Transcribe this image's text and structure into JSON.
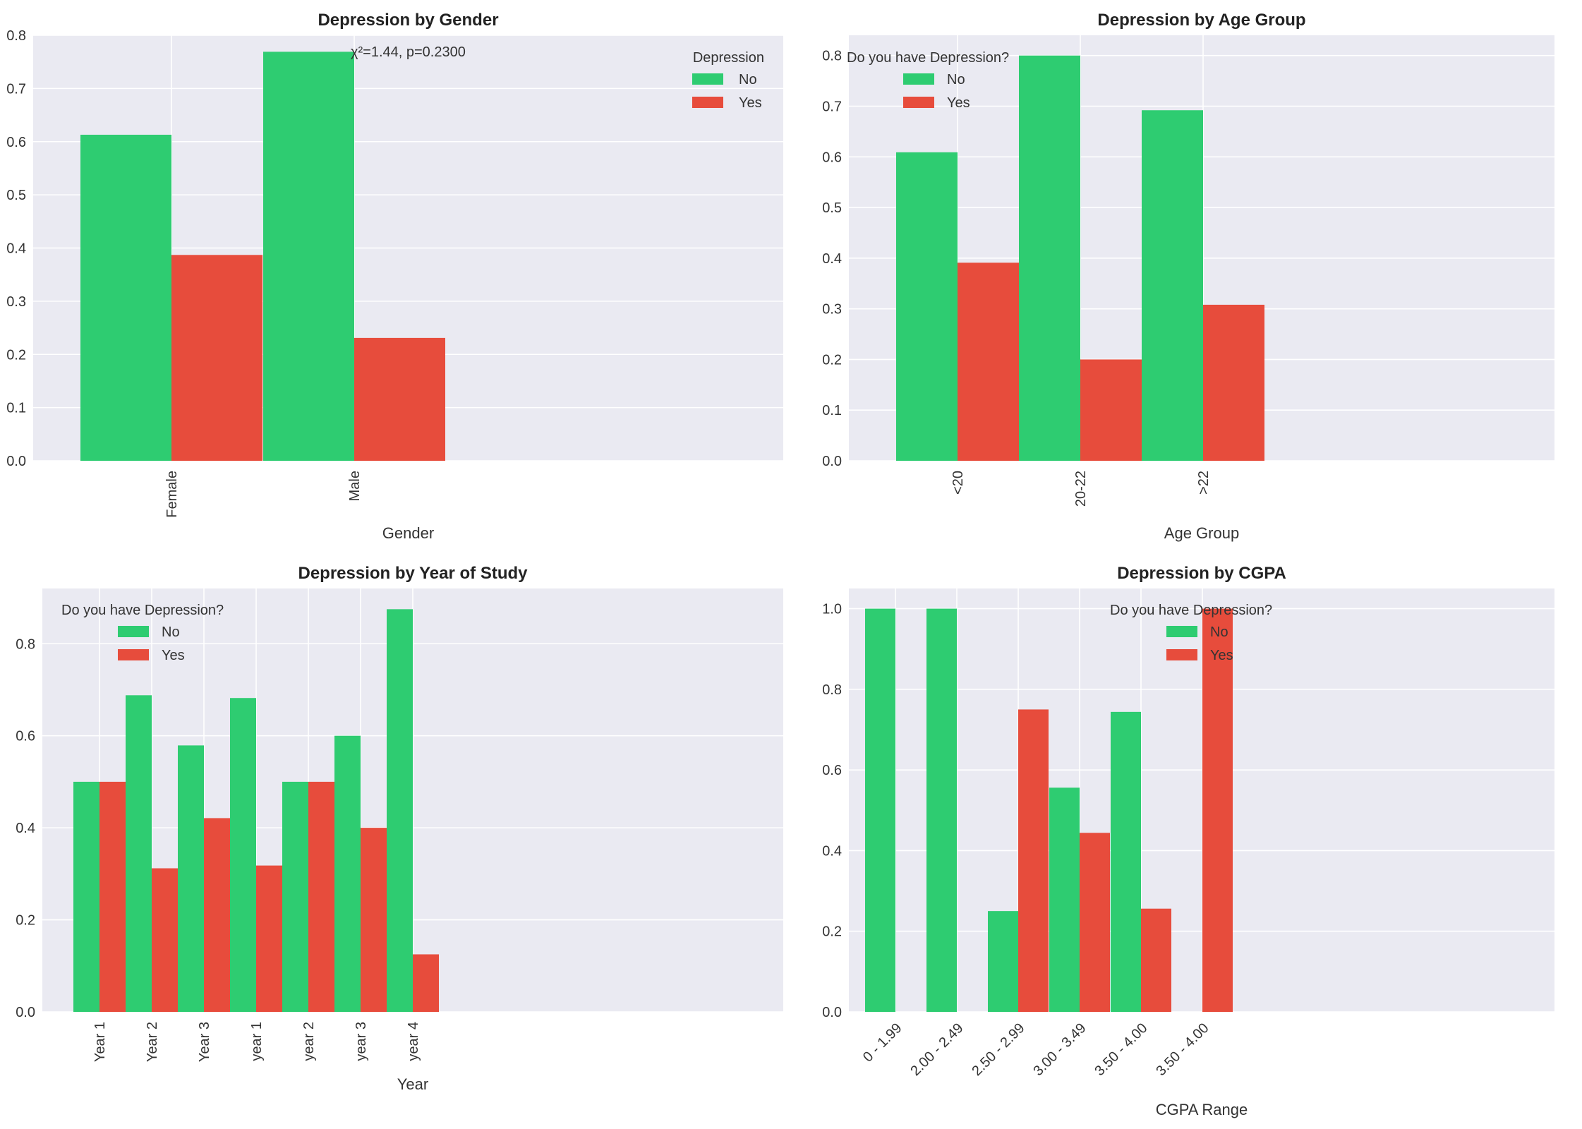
{
  "colors": {
    "no": "#2ecc71",
    "yes": "#e74c3c",
    "plot_bg": "#eaeaf2",
    "grid": "#ffffff",
    "text": "#333333"
  },
  "chart_data": [
    {
      "type": "bar",
      "title": "Depression by Gender",
      "xlabel": "Gender",
      "ylabel": "",
      "categories": [
        "Female",
        "Male"
      ],
      "series": [
        {
          "name": "No",
          "values": [
            0.613,
            0.769
          ]
        },
        {
          "name": "Yes",
          "values": [
            0.387,
            0.231
          ]
        }
      ],
      "ylim": [
        0,
        0.8
      ],
      "yticks": [
        "0.0",
        "0.1",
        "0.2",
        "0.3",
        "0.4",
        "0.5",
        "0.6",
        "0.7",
        "0.8"
      ],
      "legend_title": "Depression",
      "legend_position": "top-right",
      "annotation": "χ²=1.44, p=0.2300",
      "xtick_rotation": "vertical",
      "grid": true
    },
    {
      "type": "bar",
      "title": "Depression by Age Group",
      "xlabel": "Age Group",
      "ylabel": "",
      "categories": [
        "<20",
        "20-22",
        ">22"
      ],
      "series": [
        {
          "name": "No",
          "values": [
            0.609,
            0.8,
            0.692
          ]
        },
        {
          "name": "Yes",
          "values": [
            0.391,
            0.2,
            0.308
          ]
        }
      ],
      "ylim": [
        0,
        0.84
      ],
      "yticks": [
        "0.0",
        "0.1",
        "0.2",
        "0.3",
        "0.4",
        "0.5",
        "0.6",
        "0.7",
        "0.8"
      ],
      "legend_title": "Do you have Depression?",
      "legend_position": "top-left",
      "xtick_rotation": "vertical",
      "grid": true
    },
    {
      "type": "bar",
      "title": "Depression by Year of Study",
      "xlabel": "Year",
      "ylabel": "",
      "categories": [
        "Year 1",
        "Year 2",
        "Year 3",
        "year 1",
        "year 2",
        "year 3",
        "year 4"
      ],
      "series": [
        {
          "name": "No",
          "values": [
            0.5,
            0.688,
            0.579,
            0.682,
            0.5,
            0.6,
            0.875
          ]
        },
        {
          "name": "Yes",
          "values": [
            0.5,
            0.312,
            0.421,
            0.318,
            0.5,
            0.4,
            0.125
          ]
        }
      ],
      "ylim": [
        0,
        0.92
      ],
      "yticks": [
        "0.0",
        "0.2",
        "0.4",
        "0.6",
        "0.8"
      ],
      "legend_title": "Do you have Depression?",
      "legend_position": "top-left",
      "xtick_rotation": "vertical",
      "grid": true
    },
    {
      "type": "bar",
      "title": "Depression by CGPA",
      "xlabel": "CGPA Range",
      "ylabel": "",
      "categories": [
        "0 - 1.99",
        "2.00 - 2.49",
        "2.50 - 2.99",
        "3.00 - 3.49",
        "3.50 - 4.00",
        "3.50 - 4.00"
      ],
      "series": [
        {
          "name": "No",
          "values": [
            1.0,
            1.0,
            0.25,
            0.556,
            0.744,
            0.0
          ]
        },
        {
          "name": "Yes",
          "values": [
            0.0,
            0.0,
            0.75,
            0.444,
            0.256,
            1.0
          ]
        }
      ],
      "ylim": [
        0,
        1.05
      ],
      "yticks": [
        "0.0",
        "0.2",
        "0.4",
        "0.6",
        "0.8",
        "1.0"
      ],
      "legend_title": "Do you have Depression?",
      "legend_position": "top-center",
      "xtick_rotation": "45",
      "grid": true
    }
  ]
}
